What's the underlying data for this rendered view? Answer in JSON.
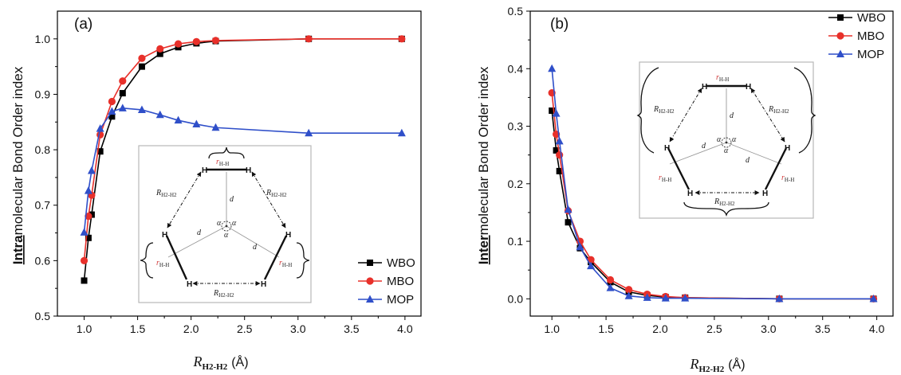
{
  "chart_data": [
    {
      "type": "line",
      "panel_label": "(a)",
      "ylabel_bold": "Intra",
      "ylabel_rest": "molecular Bond Order index",
      "xlabel_main": "R",
      "xlabel_sub": "H2-H2",
      "xlabel_unit": "(Å)",
      "xlim": [
        0.75,
        4.15
      ],
      "ylim": [
        0.5,
        1.05
      ],
      "xticks": [
        "1.0",
        "1.5",
        "2.0",
        "2.5",
        "3.0",
        "3.5",
        "4.0"
      ],
      "yticks": [
        "0.5",
        "0.6",
        "0.7",
        "0.8",
        "0.9",
        "1.0"
      ],
      "legend_position": "bottom-right",
      "series": [
        {
          "name": "WBO",
          "color": "#000000",
          "marker": "square",
          "x": [
            1.0,
            1.04,
            1.07,
            1.15,
            1.26,
            1.36,
            1.54,
            1.71,
            1.88,
            2.05,
            2.23,
            3.1,
            3.97
          ],
          "y": [
            0.564,
            0.641,
            0.683,
            0.797,
            0.86,
            0.902,
            0.95,
            0.973,
            0.985,
            0.992,
            0.996,
            1.0,
            1.0
          ]
        },
        {
          "name": "MBO",
          "color": "#e8302a",
          "marker": "circle",
          "x": [
            1.0,
            1.04,
            1.07,
            1.15,
            1.26,
            1.36,
            1.54,
            1.71,
            1.88,
            2.05,
            2.23,
            3.1,
            3.97
          ],
          "y": [
            0.6,
            0.68,
            0.718,
            0.827,
            0.887,
            0.924,
            0.965,
            0.982,
            0.991,
            0.995,
            0.997,
            1.0,
            1.0
          ]
        },
        {
          "name": "MOP",
          "color": "#2f4fc9",
          "marker": "triangle",
          "x": [
            1.0,
            1.04,
            1.07,
            1.15,
            1.26,
            1.36,
            1.54,
            1.71,
            1.88,
            2.05,
            2.23,
            3.1,
            3.97
          ],
          "y": [
            0.651,
            0.726,
            0.762,
            0.838,
            0.869,
            0.875,
            0.872,
            0.863,
            0.853,
            0.846,
            0.84,
            0.83,
            0.83
          ]
        }
      ],
      "inset": {
        "r_hh": "r",
        "r_hh_sub": "H-H",
        "R_label": "R",
        "R_sub": "H2-H2",
        "d": "d",
        "alpha": "α",
        "H": "H"
      }
    },
    {
      "type": "line",
      "panel_label": "(b)",
      "ylabel_bold": "Inter",
      "ylabel_rest": "molecular Bond Order index",
      "xlabel_main": "R",
      "xlabel_sub": "H2-H2",
      "xlabel_unit": "(Å)",
      "xlim": [
        0.8,
        4.15
      ],
      "ylim": [
        -0.03,
        0.5
      ],
      "xticks": [
        "1.0",
        "1.5",
        "2.0",
        "2.5",
        "3.0",
        "3.5",
        "4.0"
      ],
      "yticks": [
        "0.0",
        "0.1",
        "0.2",
        "0.3",
        "0.4",
        "0.5"
      ],
      "legend_position": "top-right",
      "series": [
        {
          "name": "WBO",
          "color": "#000000",
          "marker": "square",
          "x": [
            1.0,
            1.04,
            1.07,
            1.15,
            1.26,
            1.36,
            1.54,
            1.71,
            1.88,
            2.05,
            2.23,
            3.1,
            3.97
          ],
          "y": [
            0.327,
            0.258,
            0.222,
            0.133,
            0.088,
            0.064,
            0.029,
            0.012,
            0.006,
            0.003,
            0.002,
            0.0,
            0.0
          ]
        },
        {
          "name": "MBO",
          "color": "#e8302a",
          "marker": "circle",
          "x": [
            1.0,
            1.04,
            1.07,
            1.15,
            1.26,
            1.36,
            1.54,
            1.71,
            1.88,
            2.05,
            2.23,
            3.1,
            3.97
          ],
          "y": [
            0.358,
            0.286,
            0.25,
            0.153,
            0.1,
            0.068,
            0.033,
            0.016,
            0.008,
            0.004,
            0.002,
            0.0,
            0.0
          ]
        },
        {
          "name": "MOP",
          "color": "#2f4fc9",
          "marker": "triangle",
          "x": [
            1.0,
            1.04,
            1.07,
            1.15,
            1.26,
            1.36,
            1.54,
            1.71,
            1.88,
            2.05,
            2.23,
            3.1,
            3.97
          ],
          "y": [
            0.4,
            0.322,
            0.274,
            0.155,
            0.09,
            0.057,
            0.019,
            0.005,
            0.002,
            0.001,
            0.001,
            0.0,
            0.0
          ]
        }
      ],
      "inset": {
        "r_hh": "r",
        "r_hh_sub": "H-H",
        "R_label": "R",
        "R_sub": "H2-H2",
        "d": "d",
        "alpha": "α",
        "H": "H"
      }
    }
  ]
}
